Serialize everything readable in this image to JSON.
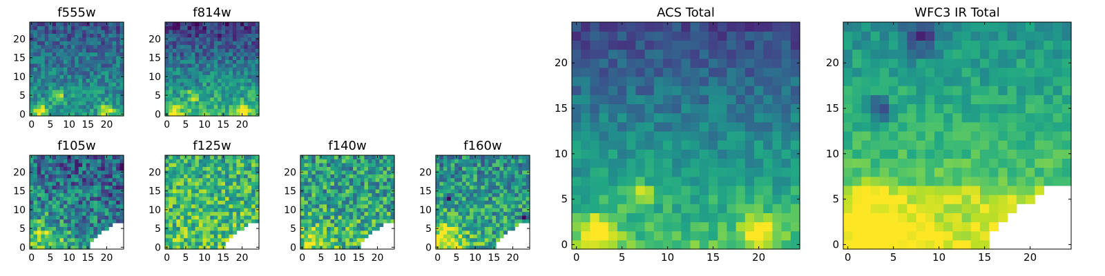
{
  "figure": {
    "colormap": "viridis",
    "background": "#ffffff"
  },
  "chart_data": [
    {
      "type": "heatmap",
      "title": "f555w",
      "xlim": [
        -0.5,
        24.5
      ],
      "ylim": [
        -0.5,
        24.5
      ],
      "xticks": [
        0,
        5,
        10,
        15,
        20
      ],
      "yticks": [
        0,
        5,
        10,
        15,
        20
      ],
      "grid_size": 25,
      "mask": "none",
      "value_trend": "mostly mid-range teal/green, darker toward top, bright yellow spots near (2,1), (7,5) and (20,1)"
    },
    {
      "type": "heatmap",
      "title": "f814w",
      "xlim": [
        -0.5,
        24.5
      ],
      "ylim": [
        -0.5,
        24.5
      ],
      "xticks": [
        0,
        5,
        10,
        15,
        20
      ],
      "yticks": [
        0,
        5,
        10,
        15,
        20
      ],
      "grid_size": 25,
      "mask": "none",
      "value_trend": "dark purple/blue at top, green in middle, yellow spots near (2,1), (7,5) and (20,1)"
    },
    {
      "type": "heatmap",
      "title": "f105w",
      "xlim": [
        -0.5,
        24.5
      ],
      "ylim": [
        -0.5,
        24.5
      ],
      "xticks": [
        0,
        5,
        10,
        15,
        20
      ],
      "yticks": [
        0,
        5,
        10,
        15,
        20
      ],
      "grid_size": 25,
      "mask": "lower-right corner empty",
      "value_trend": "noisy green/yellow, brighter toward bottom-left"
    },
    {
      "type": "heatmap",
      "title": "f125w",
      "xlim": [
        -0.5,
        24.5
      ],
      "ylim": [
        -0.5,
        24.5
      ],
      "xticks": [
        0,
        5,
        10,
        15,
        20
      ],
      "yticks": [
        0,
        5,
        10,
        15,
        20
      ],
      "grid_size": 25,
      "mask": "lower-right corner empty",
      "value_trend": "mostly yellow-green with scattered dark cells"
    },
    {
      "type": "heatmap",
      "title": "f140w",
      "xlim": [
        -0.5,
        24.5
      ],
      "ylim": [
        -0.5,
        24.5
      ],
      "xticks": [
        0,
        5,
        10,
        15,
        20
      ],
      "yticks": [
        0,
        5,
        10,
        15,
        20
      ],
      "grid_size": 25,
      "mask": "lower-right corner empty",
      "value_trend": "noisy green/yellow with blue patches"
    },
    {
      "type": "heatmap",
      "title": "f160w",
      "xlim": [
        -0.5,
        24.5
      ],
      "ylim": [
        -0.5,
        24.5
      ],
      "xticks": [
        0,
        5,
        10,
        15,
        20
      ],
      "yticks": [
        0,
        5,
        10,
        15,
        20
      ],
      "grid_size": 25,
      "mask": "lower-right corner empty",
      "value_trend": "noisy green/yellow, brighter bottom-left, dark cells near (3,13) and (23,8)"
    },
    {
      "type": "heatmap",
      "title": "ACS Total",
      "xlim": [
        -0.5,
        24.5
      ],
      "ylim": [
        -0.5,
        24.5
      ],
      "xticks": [
        0,
        5,
        10,
        15,
        20
      ],
      "yticks": [
        0,
        5,
        10,
        15,
        20
      ],
      "grid_size": 25,
      "mask": "none",
      "value_trend": "dark blue/purple at top rows, teal middle, green lower, yellow blobs at (2,1), (7,5) and (20,1)"
    },
    {
      "type": "heatmap",
      "title": "WFC3 IR Total",
      "xlim": [
        -0.5,
        24.5
      ],
      "ylim": [
        -0.5,
        24.5
      ],
      "xticks": [
        0,
        5,
        10,
        15,
        20
      ],
      "yticks": [
        0,
        5,
        10,
        15,
        20
      ],
      "grid_size": 25,
      "mask": "lower-right corner empty",
      "value_trend": "teal/green upper area with dark cells near top, yellow-green lower band, bright yellow at bottom-left"
    }
  ]
}
